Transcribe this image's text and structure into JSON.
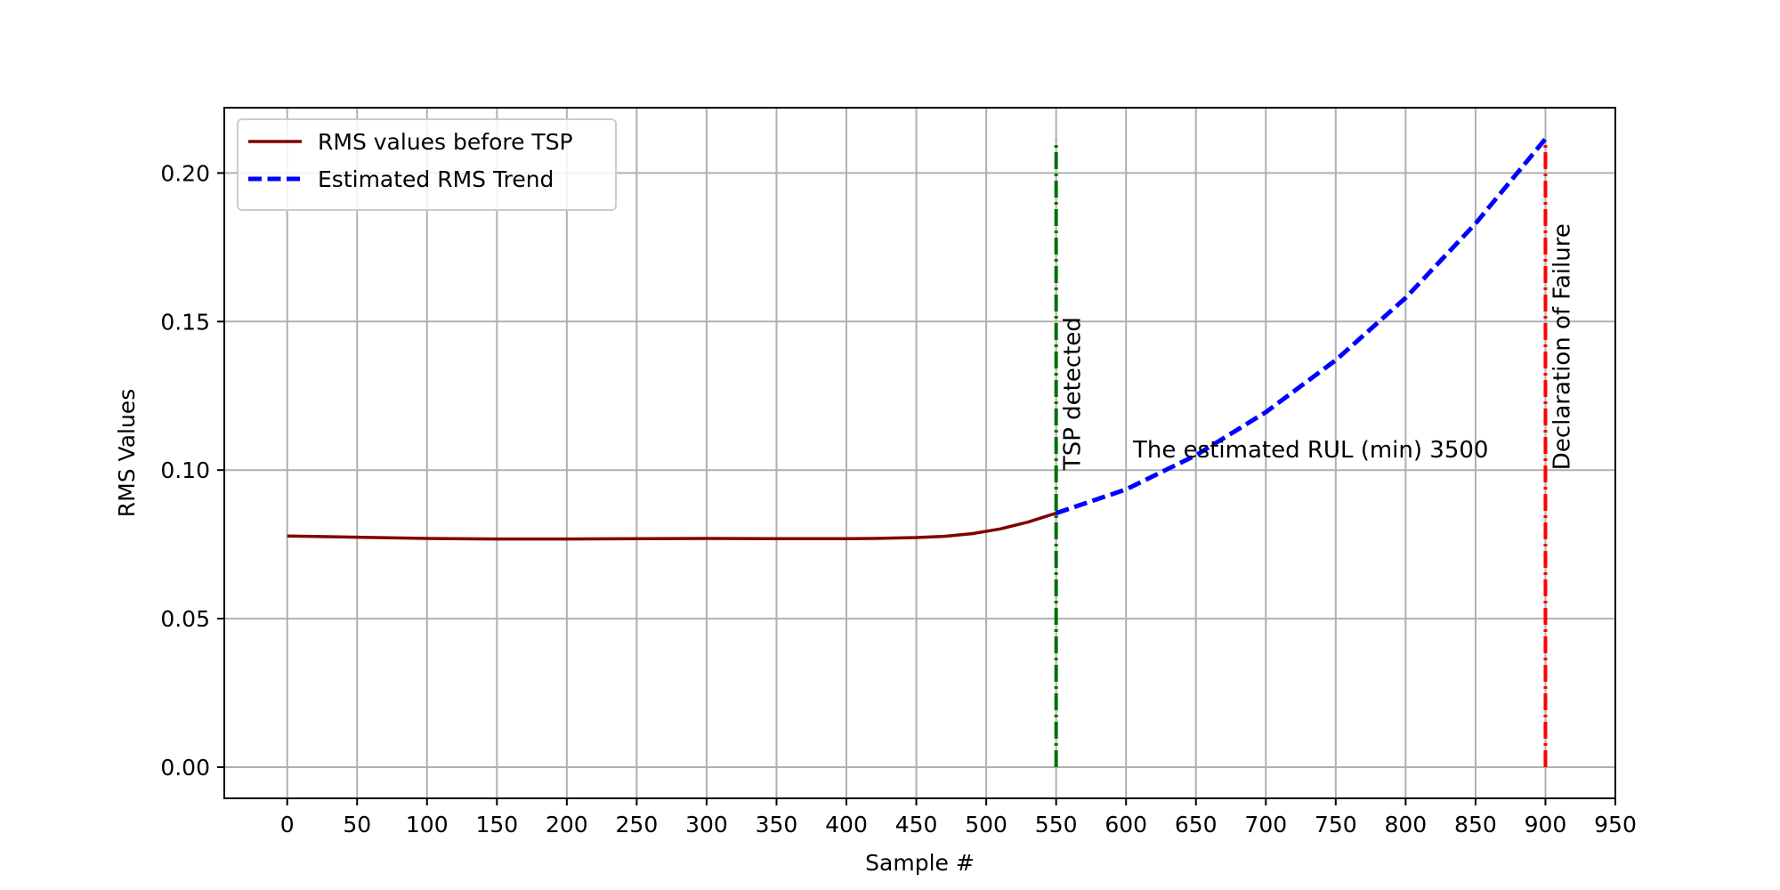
{
  "chart_data": {
    "type": "line",
    "xlabel": "Sample #",
    "ylabel": "RMS Values",
    "xlim": [
      -45,
      950
    ],
    "ylim": [
      -0.0105,
      0.222
    ],
    "xticks": [
      0,
      50,
      100,
      150,
      200,
      250,
      300,
      350,
      400,
      450,
      500,
      550,
      600,
      650,
      700,
      750,
      800,
      850,
      900,
      950
    ],
    "yticks": [
      0.0,
      0.05,
      0.1,
      0.15,
      0.2
    ],
    "ytick_labels": [
      "0.00",
      "0.05",
      "0.10",
      "0.15",
      "0.20"
    ],
    "grid": true,
    "legend_position": "upper-left",
    "series": [
      {
        "name": "RMS values before TSP",
        "color": "#800000",
        "style": "solid",
        "x": [
          0,
          50,
          100,
          150,
          200,
          250,
          300,
          350,
          400,
          420,
          450,
          470,
          490,
          510,
          530,
          550
        ],
        "y": [
          0.0778,
          0.0774,
          0.077,
          0.0768,
          0.0768,
          0.0769,
          0.077,
          0.0769,
          0.0769,
          0.077,
          0.0773,
          0.0777,
          0.0786,
          0.0802,
          0.0825,
          0.0855
        ]
      },
      {
        "name": "Estimated RMS Trend",
        "color": "#0000ff",
        "style": "dashed",
        "x": [
          550,
          600,
          650,
          700,
          750,
          800,
          850,
          900
        ],
        "y": [
          0.0855,
          0.0935,
          0.105,
          0.1195,
          0.137,
          0.158,
          0.183,
          0.2115
        ]
      }
    ],
    "vlines": [
      {
        "x": 550,
        "ymin": 0.0,
        "ymax": 0.211,
        "color": "#007000",
        "style": "dashdot",
        "label": "TSP detected"
      },
      {
        "x": 900,
        "ymin": 0.0,
        "ymax": 0.211,
        "color": "#ff0000",
        "style": "dashdot",
        "label": "Declaration of Failure"
      }
    ],
    "annotations": [
      {
        "text": "The estimated RUL (min) 3500",
        "x": 605,
        "y": 0.107
      }
    ]
  }
}
